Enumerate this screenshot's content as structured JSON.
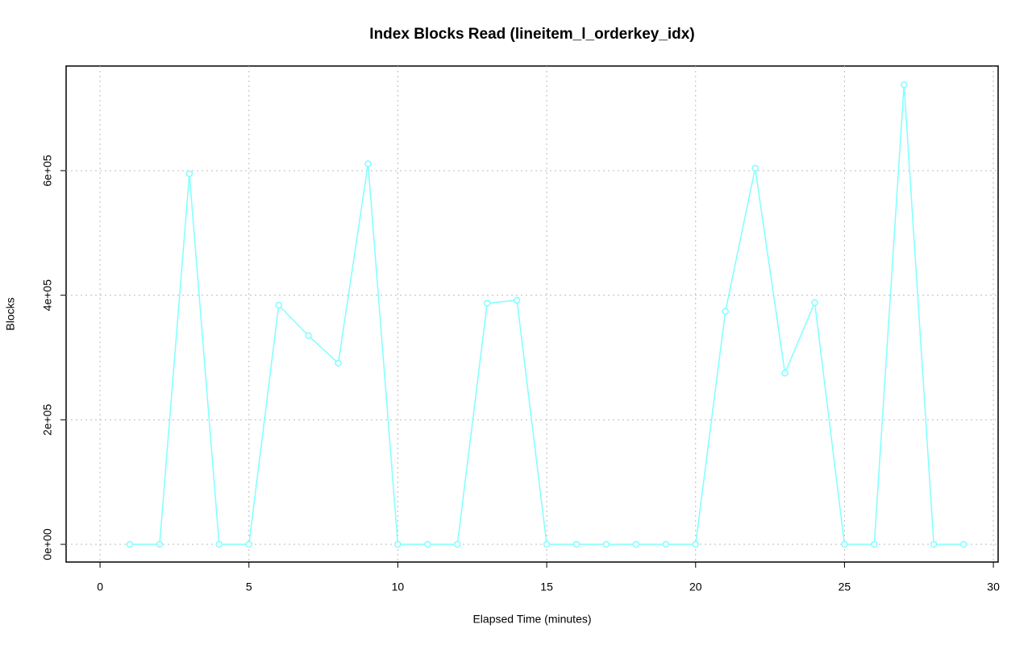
{
  "chart_data": {
    "type": "line",
    "title": "Index Blocks Read (lineitem_l_orderkey_idx)",
    "x_label": "Elapsed Time (minutes)",
    "y_label": "Blocks",
    "x": [
      1,
      2,
      3,
      4,
      5,
      6,
      7,
      8,
      9,
      10,
      11,
      12,
      13,
      14,
      15,
      16,
      17,
      18,
      19,
      20,
      21,
      22,
      23,
      24,
      25,
      26,
      27,
      28,
      29
    ],
    "series": [
      {
        "name": "Blocks",
        "color": "#80ffff",
        "values": [
          0,
          0,
          595000,
          0,
          0,
          384000,
          335000,
          291000,
          611000,
          0,
          0,
          0,
          387000,
          392000,
          0,
          0,
          0,
          0,
          0,
          0,
          374000,
          604000,
          275000,
          388000,
          0,
          0,
          738000,
          0,
          0
        ]
      }
    ],
    "xlim": [
      -1.14,
      30.16
    ],
    "ylim": [
      -28400,
      768000
    ],
    "xticks": [
      0,
      5,
      10,
      15,
      20,
      25,
      30
    ],
    "yticks": [
      {
        "value": 0,
        "label": "0e+00"
      },
      {
        "value": 200000,
        "label": "2e+05"
      },
      {
        "value": 400000,
        "label": "4e+05"
      },
      {
        "value": 600000,
        "label": "6e+05"
      }
    ],
    "grid": true
  }
}
